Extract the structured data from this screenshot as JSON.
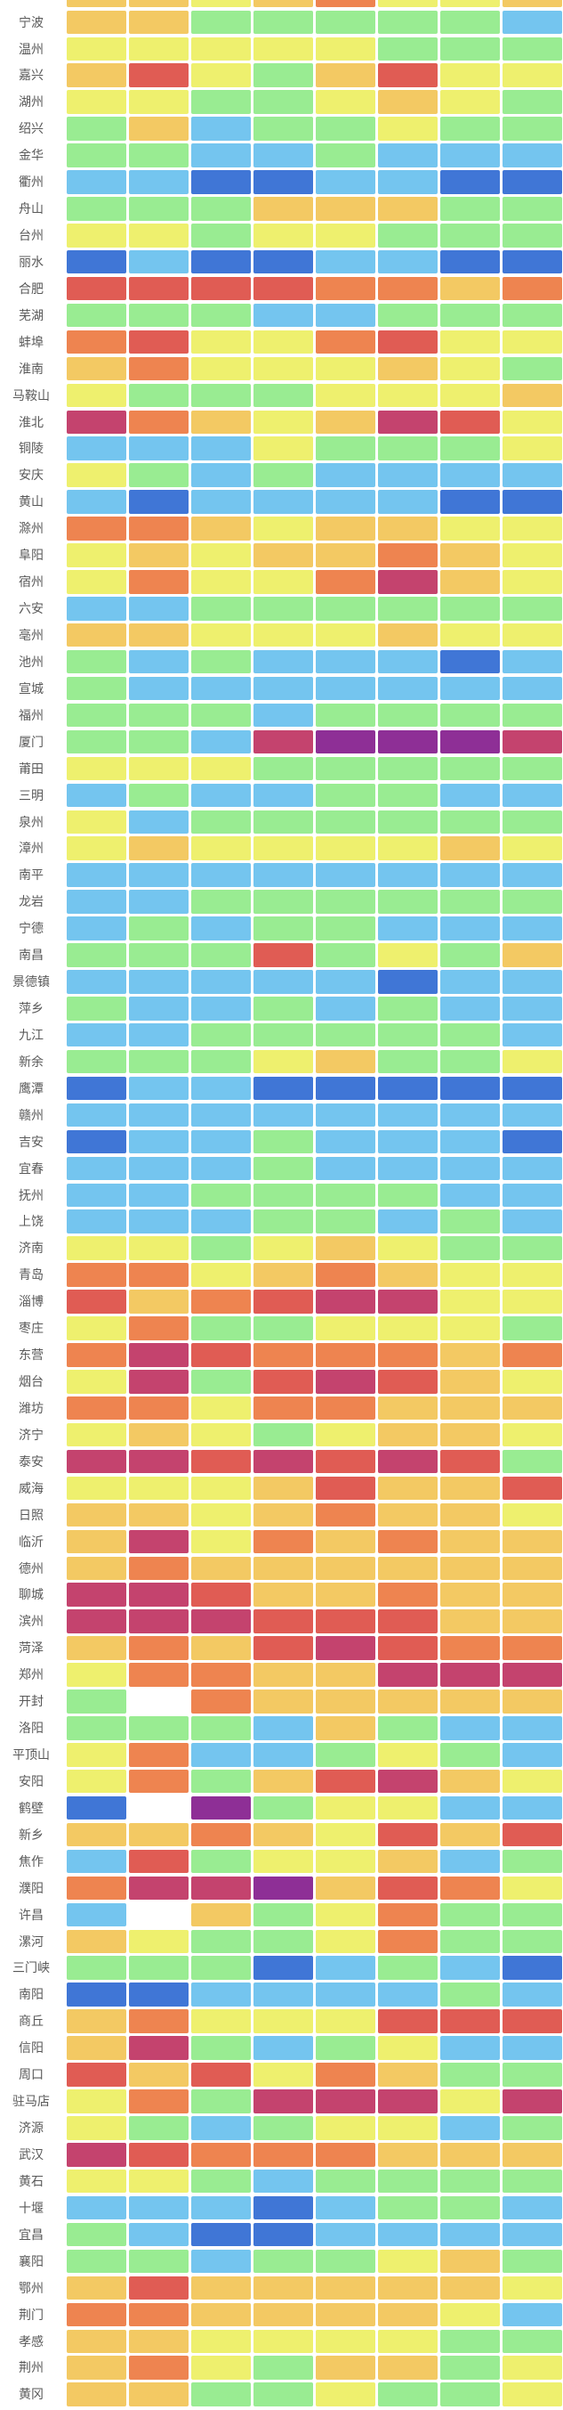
{
  "chart_data": {
    "type": "heatmap",
    "title": "",
    "xlabel": "",
    "ylabel": "",
    "num_columns": 8,
    "column_headers_visible": false,
    "legend": "none (cropped out of view)",
    "palette": {
      "DB": "#4076d6",
      "B": "#74c5ef",
      "G": "#99ec92",
      "Y": "#eef06e",
      "YO": "#f3c963",
      "O": "#ee8450",
      "R": "#e05c54",
      "DR": "#c4436e",
      "P": "#8e2f96",
      "W": "#ffffff"
    },
    "palette_legend_names": {
      "DB": "dark-blue",
      "B": "light-blue",
      "G": "green",
      "Y": "yellow",
      "YO": "amber",
      "O": "orange",
      "R": "red",
      "DR": "crimson",
      "P": "purple",
      "W": "white"
    },
    "top_partial_row_cells": [
      "YO",
      "YO",
      "Y",
      "YO",
      "O",
      "Y",
      "Y",
      "YO"
    ],
    "rows": [
      {
        "label": "宁波",
        "cells": [
          "YO",
          "YO",
          "G",
          "G",
          "G",
          "G",
          "G",
          "B"
        ]
      },
      {
        "label": "温州",
        "cells": [
          "Y",
          "Y",
          "Y",
          "Y",
          "Y",
          "G",
          "G",
          "G"
        ]
      },
      {
        "label": "嘉兴",
        "cells": [
          "YO",
          "R",
          "Y",
          "G",
          "YO",
          "R",
          "Y",
          "Y"
        ]
      },
      {
        "label": "湖州",
        "cells": [
          "Y",
          "Y",
          "G",
          "G",
          "Y",
          "YO",
          "Y",
          "G"
        ]
      },
      {
        "label": "绍兴",
        "cells": [
          "G",
          "YO",
          "B",
          "G",
          "G",
          "Y",
          "G",
          "G"
        ]
      },
      {
        "label": "金华",
        "cells": [
          "G",
          "G",
          "B",
          "B",
          "G",
          "B",
          "B",
          "B"
        ]
      },
      {
        "label": "衢州",
        "cells": [
          "B",
          "B",
          "DB",
          "DB",
          "B",
          "B",
          "DB",
          "DB"
        ]
      },
      {
        "label": "舟山",
        "cells": [
          "G",
          "G",
          "G",
          "YO",
          "YO",
          "YO",
          "G",
          "G"
        ]
      },
      {
        "label": "台州",
        "cells": [
          "Y",
          "Y",
          "G",
          "Y",
          "Y",
          "G",
          "G",
          "G"
        ]
      },
      {
        "label": "丽水",
        "cells": [
          "DB",
          "B",
          "DB",
          "DB",
          "B",
          "B",
          "DB",
          "DB"
        ]
      },
      {
        "label": "合肥",
        "cells": [
          "R",
          "R",
          "R",
          "R",
          "O",
          "O",
          "YO",
          "O"
        ]
      },
      {
        "label": "芜湖",
        "cells": [
          "G",
          "G",
          "G",
          "B",
          "B",
          "G",
          "G",
          "G"
        ]
      },
      {
        "label": "蚌埠",
        "cells": [
          "O",
          "R",
          "Y",
          "Y",
          "O",
          "R",
          "Y",
          "Y"
        ]
      },
      {
        "label": "淮南",
        "cells": [
          "YO",
          "O",
          "Y",
          "Y",
          "Y",
          "YO",
          "Y",
          "G"
        ]
      },
      {
        "label": "马鞍山",
        "cells": [
          "Y",
          "G",
          "G",
          "G",
          "Y",
          "Y",
          "Y",
          "YO"
        ]
      },
      {
        "label": "淮北",
        "cells": [
          "DR",
          "O",
          "YO",
          "Y",
          "YO",
          "DR",
          "R",
          "Y"
        ]
      },
      {
        "label": "铜陵",
        "cells": [
          "B",
          "B",
          "B",
          "Y",
          "G",
          "G",
          "G",
          "Y"
        ]
      },
      {
        "label": "安庆",
        "cells": [
          "Y",
          "G",
          "B",
          "G",
          "B",
          "B",
          "B",
          "B"
        ]
      },
      {
        "label": "黄山",
        "cells": [
          "B",
          "DB",
          "B",
          "B",
          "B",
          "B",
          "DB",
          "DB"
        ]
      },
      {
        "label": "滁州",
        "cells": [
          "O",
          "O",
          "YO",
          "Y",
          "YO",
          "YO",
          "Y",
          "Y"
        ]
      },
      {
        "label": "阜阳",
        "cells": [
          "Y",
          "YO",
          "Y",
          "YO",
          "YO",
          "O",
          "YO",
          "Y"
        ]
      },
      {
        "label": "宿州",
        "cells": [
          "Y",
          "O",
          "Y",
          "Y",
          "O",
          "DR",
          "YO",
          "Y"
        ]
      },
      {
        "label": "六安",
        "cells": [
          "B",
          "B",
          "G",
          "G",
          "G",
          "G",
          "G",
          "G"
        ]
      },
      {
        "label": "亳州",
        "cells": [
          "YO",
          "YO",
          "Y",
          "Y",
          "Y",
          "YO",
          "Y",
          "Y"
        ]
      },
      {
        "label": "池州",
        "cells": [
          "G",
          "B",
          "G",
          "B",
          "B",
          "B",
          "DB",
          "B"
        ]
      },
      {
        "label": "宣城",
        "cells": [
          "G",
          "B",
          "B",
          "B",
          "B",
          "B",
          "B",
          "B"
        ]
      },
      {
        "label": "福州",
        "cells": [
          "G",
          "G",
          "G",
          "B",
          "G",
          "G",
          "G",
          "G"
        ]
      },
      {
        "label": "厦门",
        "cells": [
          "G",
          "G",
          "B",
          "DR",
          "P",
          "P",
          "P",
          "DR"
        ]
      },
      {
        "label": "莆田",
        "cells": [
          "Y",
          "Y",
          "Y",
          "G",
          "G",
          "G",
          "G",
          "G"
        ]
      },
      {
        "label": "三明",
        "cells": [
          "B",
          "G",
          "B",
          "B",
          "G",
          "G",
          "B",
          "B"
        ]
      },
      {
        "label": "泉州",
        "cells": [
          "Y",
          "B",
          "G",
          "G",
          "G",
          "G",
          "G",
          "G"
        ]
      },
      {
        "label": "漳州",
        "cells": [
          "Y",
          "YO",
          "Y",
          "Y",
          "Y",
          "Y",
          "YO",
          "Y"
        ]
      },
      {
        "label": "南平",
        "cells": [
          "B",
          "B",
          "B",
          "B",
          "B",
          "B",
          "B",
          "B"
        ]
      },
      {
        "label": "龙岩",
        "cells": [
          "B",
          "B",
          "G",
          "G",
          "G",
          "G",
          "G",
          "G"
        ]
      },
      {
        "label": "宁德",
        "cells": [
          "B",
          "G",
          "B",
          "G",
          "G",
          "B",
          "B",
          "B"
        ]
      },
      {
        "label": "南昌",
        "cells": [
          "G",
          "G",
          "G",
          "R",
          "G",
          "Y",
          "G",
          "YO"
        ]
      },
      {
        "label": "景德镇",
        "cells": [
          "B",
          "B",
          "B",
          "B",
          "B",
          "DB",
          "B",
          "B"
        ]
      },
      {
        "label": "萍乡",
        "cells": [
          "G",
          "B",
          "B",
          "G",
          "B",
          "G",
          "B",
          "B"
        ]
      },
      {
        "label": "九江",
        "cells": [
          "B",
          "B",
          "G",
          "G",
          "G",
          "G",
          "G",
          "B"
        ]
      },
      {
        "label": "新余",
        "cells": [
          "G",
          "G",
          "G",
          "Y",
          "YO",
          "G",
          "G",
          "Y"
        ]
      },
      {
        "label": "鹰潭",
        "cells": [
          "DB",
          "B",
          "B",
          "DB",
          "DB",
          "DB",
          "DB",
          "DB"
        ]
      },
      {
        "label": "赣州",
        "cells": [
          "B",
          "B",
          "B",
          "B",
          "B",
          "B",
          "B",
          "B"
        ]
      },
      {
        "label": "吉安",
        "cells": [
          "DB",
          "B",
          "B",
          "G",
          "B",
          "B",
          "B",
          "DB"
        ]
      },
      {
        "label": "宜春",
        "cells": [
          "B",
          "B",
          "B",
          "G",
          "B",
          "B",
          "B",
          "B"
        ]
      },
      {
        "label": "抚州",
        "cells": [
          "B",
          "B",
          "G",
          "G",
          "G",
          "G",
          "B",
          "B"
        ]
      },
      {
        "label": "上饶",
        "cells": [
          "B",
          "B",
          "B",
          "G",
          "G",
          "B",
          "G",
          "B"
        ]
      },
      {
        "label": "济南",
        "cells": [
          "Y",
          "Y",
          "G",
          "Y",
          "YO",
          "Y",
          "G",
          "G"
        ]
      },
      {
        "label": "青岛",
        "cells": [
          "O",
          "O",
          "Y",
          "YO",
          "O",
          "YO",
          "Y",
          "Y"
        ]
      },
      {
        "label": "淄博",
        "cells": [
          "R",
          "YO",
          "O",
          "R",
          "DR",
          "DR",
          "Y",
          "Y"
        ]
      },
      {
        "label": "枣庄",
        "cells": [
          "Y",
          "O",
          "G",
          "G",
          "Y",
          "Y",
          "Y",
          "G"
        ]
      },
      {
        "label": "东营",
        "cells": [
          "O",
          "DR",
          "R",
          "O",
          "O",
          "O",
          "YO",
          "O"
        ]
      },
      {
        "label": "烟台",
        "cells": [
          "Y",
          "DR",
          "G",
          "R",
          "DR",
          "R",
          "YO",
          "Y"
        ]
      },
      {
        "label": "潍坊",
        "cells": [
          "O",
          "O",
          "Y",
          "O",
          "O",
          "YO",
          "YO",
          "YO"
        ]
      },
      {
        "label": "济宁",
        "cells": [
          "Y",
          "YO",
          "Y",
          "G",
          "Y",
          "YO",
          "YO",
          "Y"
        ]
      },
      {
        "label": "泰安",
        "cells": [
          "DR",
          "DR",
          "R",
          "DR",
          "R",
          "DR",
          "R",
          "G"
        ]
      },
      {
        "label": "威海",
        "cells": [
          "Y",
          "Y",
          "Y",
          "YO",
          "R",
          "YO",
          "YO",
          "R"
        ]
      },
      {
        "label": "日照",
        "cells": [
          "YO",
          "YO",
          "Y",
          "YO",
          "O",
          "YO",
          "YO",
          "Y"
        ]
      },
      {
        "label": "临沂",
        "cells": [
          "YO",
          "DR",
          "Y",
          "O",
          "YO",
          "O",
          "YO",
          "YO"
        ]
      },
      {
        "label": "德州",
        "cells": [
          "YO",
          "O",
          "YO",
          "YO",
          "YO",
          "YO",
          "YO",
          "YO"
        ]
      },
      {
        "label": "聊城",
        "cells": [
          "DR",
          "DR",
          "R",
          "YO",
          "YO",
          "O",
          "YO",
          "YO"
        ]
      },
      {
        "label": "滨州",
        "cells": [
          "DR",
          "DR",
          "DR",
          "R",
          "R",
          "R",
          "YO",
          "YO"
        ]
      },
      {
        "label": "菏泽",
        "cells": [
          "YO",
          "O",
          "YO",
          "R",
          "DR",
          "R",
          "O",
          "O"
        ]
      },
      {
        "label": "郑州",
        "cells": [
          "Y",
          "O",
          "O",
          "YO",
          "YO",
          "DR",
          "DR",
          "DR"
        ]
      },
      {
        "label": "开封",
        "cells": [
          "G",
          "W",
          "O",
          "YO",
          "YO",
          "YO",
          "YO",
          "YO"
        ]
      },
      {
        "label": "洛阳",
        "cells": [
          "G",
          "G",
          "G",
          "B",
          "YO",
          "G",
          "B",
          "B"
        ]
      },
      {
        "label": "平顶山",
        "cells": [
          "Y",
          "O",
          "B",
          "B",
          "G",
          "Y",
          "G",
          "B"
        ]
      },
      {
        "label": "安阳",
        "cells": [
          "Y",
          "O",
          "G",
          "YO",
          "R",
          "DR",
          "YO",
          "Y"
        ]
      },
      {
        "label": "鹤壁",
        "cells": [
          "DB",
          "W",
          "P",
          "G",
          "Y",
          "Y",
          "B",
          "B"
        ]
      },
      {
        "label": "新乡",
        "cells": [
          "YO",
          "YO",
          "O",
          "YO",
          "Y",
          "R",
          "YO",
          "R"
        ]
      },
      {
        "label": "焦作",
        "cells": [
          "B",
          "R",
          "G",
          "Y",
          "Y",
          "YO",
          "B",
          "G"
        ]
      },
      {
        "label": "濮阳",
        "cells": [
          "O",
          "DR",
          "DR",
          "P",
          "YO",
          "R",
          "O",
          "Y"
        ]
      },
      {
        "label": "许昌",
        "cells": [
          "B",
          "W",
          "YO",
          "G",
          "Y",
          "O",
          "G",
          "G"
        ]
      },
      {
        "label": "漯河",
        "cells": [
          "YO",
          "Y",
          "G",
          "G",
          "Y",
          "O",
          "G",
          "G"
        ]
      },
      {
        "label": "三门峡",
        "cells": [
          "G",
          "G",
          "G",
          "DB",
          "B",
          "G",
          "B",
          "DB"
        ]
      },
      {
        "label": "南阳",
        "cells": [
          "DB",
          "DB",
          "B",
          "B",
          "B",
          "B",
          "G",
          "B"
        ]
      },
      {
        "label": "商丘",
        "cells": [
          "YO",
          "O",
          "Y",
          "Y",
          "Y",
          "R",
          "R",
          "R"
        ]
      },
      {
        "label": "信阳",
        "cells": [
          "YO",
          "DR",
          "G",
          "B",
          "G",
          "Y",
          "B",
          "B"
        ]
      },
      {
        "label": "周口",
        "cells": [
          "R",
          "YO",
          "R",
          "Y",
          "O",
          "YO",
          "G",
          "G"
        ]
      },
      {
        "label": "驻马店",
        "cells": [
          "Y",
          "O",
          "G",
          "DR",
          "DR",
          "DR",
          "Y",
          "DR"
        ]
      },
      {
        "label": "济源",
        "cells": [
          "Y",
          "G",
          "B",
          "G",
          "Y",
          "Y",
          "B",
          "G"
        ]
      },
      {
        "label": "武汉",
        "cells": [
          "DR",
          "R",
          "O",
          "O",
          "O",
          "YO",
          "YO",
          "YO"
        ]
      },
      {
        "label": "黄石",
        "cells": [
          "Y",
          "Y",
          "G",
          "B",
          "G",
          "G",
          "G",
          "G"
        ]
      },
      {
        "label": "十堰",
        "cells": [
          "B",
          "B",
          "B",
          "DB",
          "B",
          "G",
          "G",
          "B"
        ]
      },
      {
        "label": "宜昌",
        "cells": [
          "G",
          "B",
          "DB",
          "DB",
          "B",
          "B",
          "B",
          "B"
        ]
      },
      {
        "label": "襄阳",
        "cells": [
          "G",
          "G",
          "B",
          "G",
          "G",
          "Y",
          "YO",
          "G"
        ]
      },
      {
        "label": "鄂州",
        "cells": [
          "YO",
          "R",
          "YO",
          "YO",
          "YO",
          "YO",
          "YO",
          "Y"
        ]
      },
      {
        "label": "荆门",
        "cells": [
          "O",
          "O",
          "YO",
          "YO",
          "YO",
          "YO",
          "Y",
          "B"
        ]
      },
      {
        "label": "孝感",
        "cells": [
          "YO",
          "YO",
          "Y",
          "Y",
          "Y",
          "Y",
          "G",
          "G"
        ]
      },
      {
        "label": "荆州",
        "cells": [
          "YO",
          "O",
          "Y",
          "G",
          "YO",
          "YO",
          "G",
          "Y"
        ]
      },
      {
        "label": "黄冈",
        "cells": [
          "YO",
          "YO",
          "G",
          "G",
          "Y",
          "G",
          "G",
          "Y"
        ]
      }
    ]
  }
}
